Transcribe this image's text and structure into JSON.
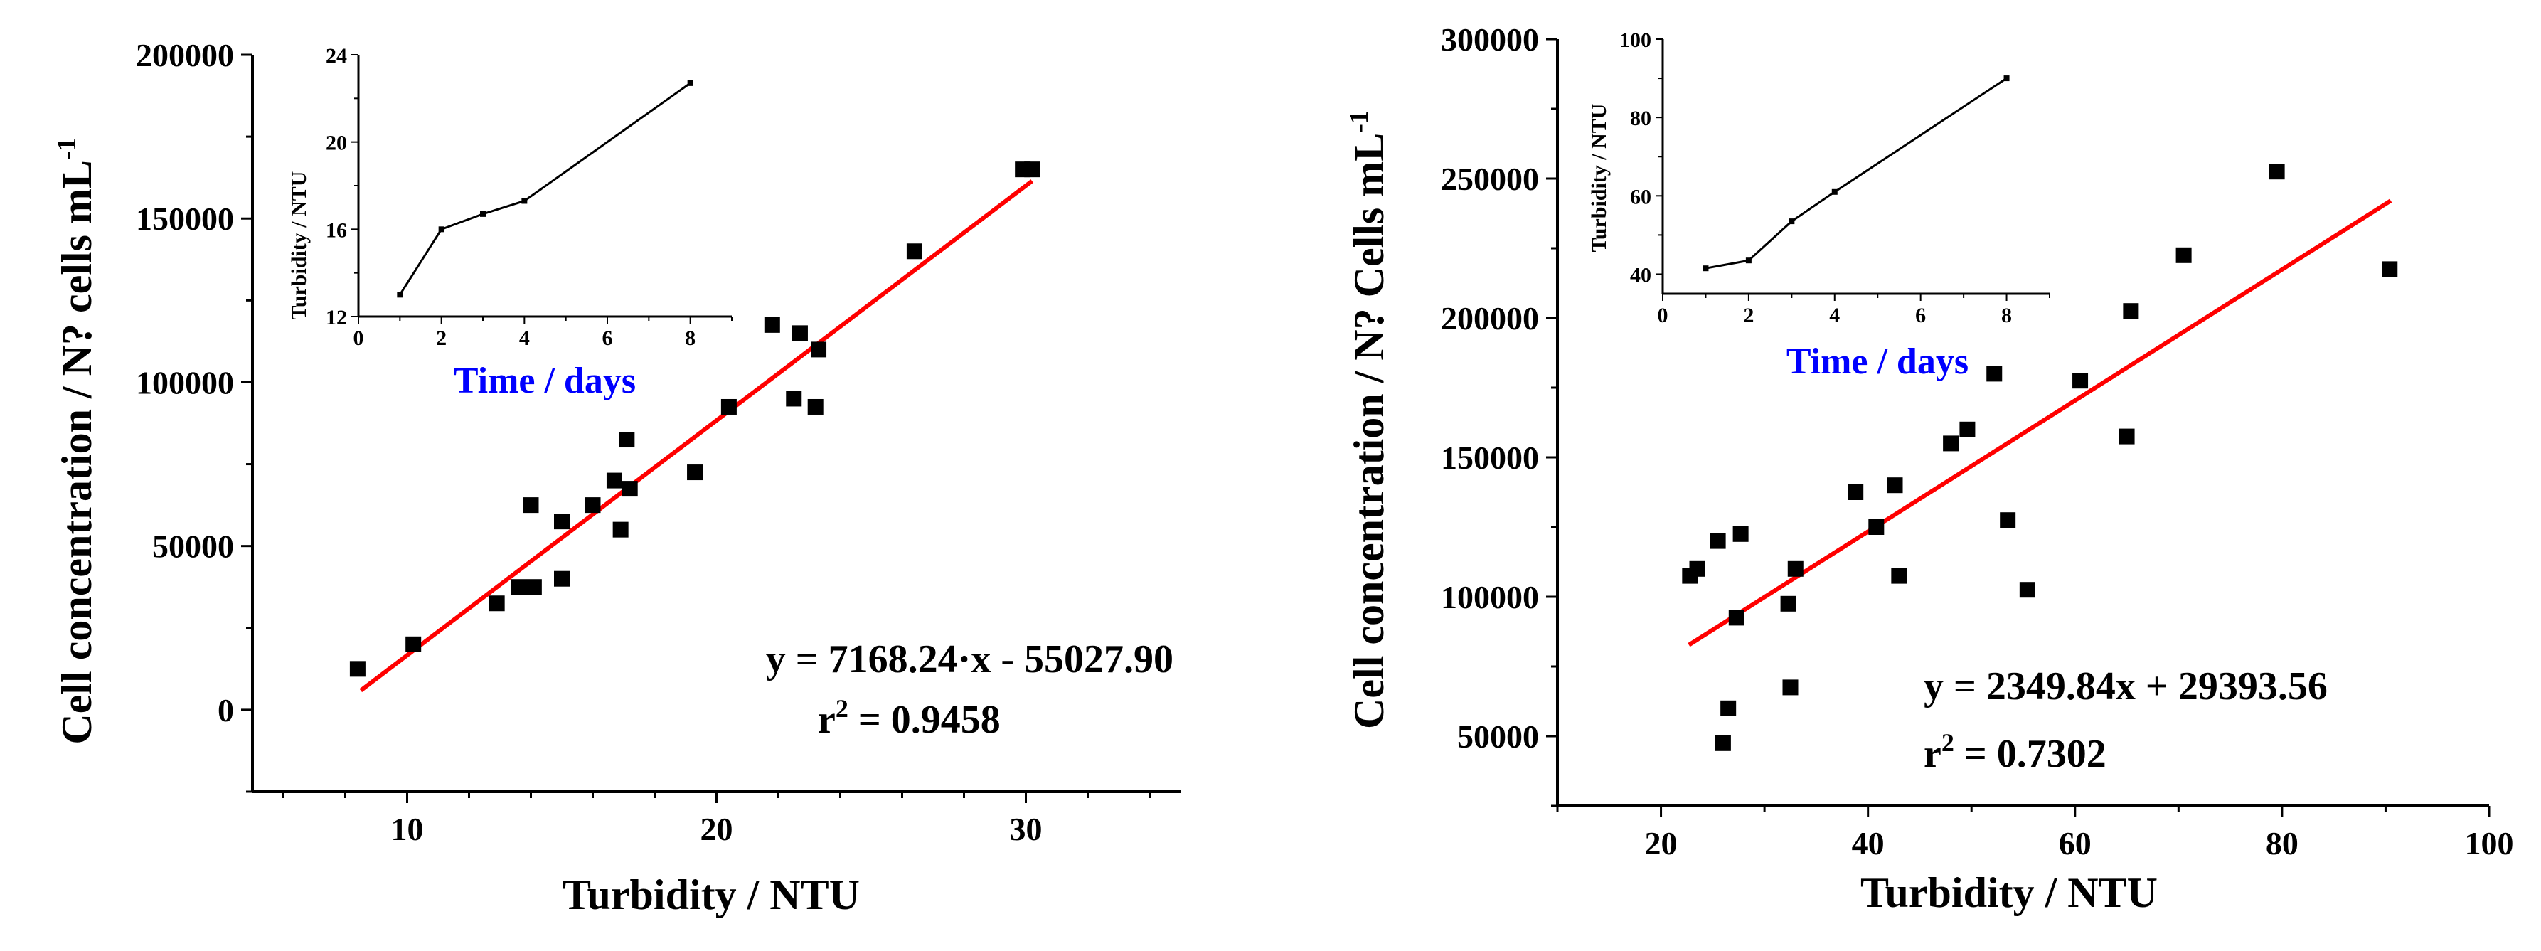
{
  "colors": {
    "fit": "#ff0000",
    "points": "#000000",
    "inset_label": "#0000ff",
    "axis": "#000000"
  },
  "chart_data": [
    {
      "type": "scatter",
      "panel": "left",
      "xlabel": "Turbidity / NTU",
      "ylabel": "Cell concentration / N? cells mL",
      "ylabel_sup": "-1",
      "xlim": [
        5,
        35
      ],
      "ylim": [
        -25000,
        200000
      ],
      "xticks": [
        10,
        20,
        30
      ],
      "yticks": [
        0,
        50000,
        100000,
        150000,
        200000
      ],
      "points": [
        [
          8.4,
          12500
        ],
        [
          10.2,
          20000
        ],
        [
          12.9,
          32500
        ],
        [
          13.6,
          37500
        ],
        [
          14.1,
          37500
        ],
        [
          14.0,
          62500
        ],
        [
          15.0,
          57500
        ],
        [
          15.0,
          40000
        ],
        [
          16.0,
          62500
        ],
        [
          16.7,
          70000
        ],
        [
          16.9,
          55000
        ],
        [
          17.1,
          82500
        ],
        [
          17.2,
          67500
        ],
        [
          19.3,
          72500
        ],
        [
          20.4,
          92500
        ],
        [
          21.8,
          117500
        ],
        [
          22.5,
          95000
        ],
        [
          22.7,
          115000
        ],
        [
          23.2,
          92500
        ],
        [
          23.3,
          110000
        ],
        [
          26.4,
          140000
        ],
        [
          29.9,
          165000
        ],
        [
          30.2,
          165000
        ]
      ],
      "fit": {
        "slope": 7168.24,
        "intercept": -55027.9,
        "x_range": [
          8.5,
          30.2
        ]
      },
      "equation": "y = 7168.24·x - 55027.90",
      "r2_prefix": "r",
      "r2_sup": "2",
      "r2_value": " = 0.9458",
      "inset": {
        "type": "line",
        "xlabel": "Time / days",
        "ylabel": "Turbidity / NTU",
        "xlim": [
          0,
          9
        ],
        "ylim": [
          12,
          24
        ],
        "xticks": [
          0,
          2,
          4,
          6,
          8
        ],
        "yticks": [
          12,
          16,
          20,
          24
        ],
        "x": [
          1,
          2,
          3,
          4,
          8
        ],
        "y": [
          13.0,
          16.0,
          16.7,
          17.3,
          22.7
        ]
      }
    },
    {
      "type": "scatter",
      "panel": "right",
      "xlabel": "Turbidity / NTU",
      "ylabel": "Cell concentration / N? Cells mL",
      "ylabel_sup": "-1",
      "xlim": [
        10,
        100
      ],
      "ylim": [
        25000,
        300000
      ],
      "xticks": [
        20,
        40,
        60,
        80,
        100
      ],
      "yticks": [
        50000,
        100000,
        150000,
        200000,
        250000,
        300000
      ],
      "points": [
        [
          22.8,
          107500
        ],
        [
          23.5,
          110000
        ],
        [
          25.5,
          120000
        ],
        [
          26.0,
          47500
        ],
        [
          26.5,
          60000
        ],
        [
          27.3,
          92500
        ],
        [
          27.7,
          122500
        ],
        [
          32.3,
          97500
        ],
        [
          32.5,
          67500
        ],
        [
          33.0,
          110000
        ],
        [
          38.8,
          137500
        ],
        [
          40.8,
          125000
        ],
        [
          42.6,
          140000
        ],
        [
          43.0,
          107500
        ],
        [
          48.0,
          155000
        ],
        [
          49.6,
          160000
        ],
        [
          52.2,
          180000
        ],
        [
          53.5,
          127500
        ],
        [
          55.4,
          102500
        ],
        [
          60.5,
          177500
        ],
        [
          65.0,
          157500
        ],
        [
          65.4,
          202500
        ],
        [
          70.5,
          222500
        ],
        [
          79.5,
          252500
        ],
        [
          90.4,
          217500
        ]
      ],
      "fit": {
        "slope": 2349.84,
        "intercept": 29393.56,
        "x_range": [
          22.7,
          90.5
        ]
      },
      "equation": "y = 2349.84x + 29393.56",
      "r2_prefix": "r",
      "r2_sup": "2",
      "r2_value": " = 0.7302",
      "inset": {
        "type": "line",
        "xlabel": "Time / days",
        "ylabel": "Turbidity / NTU",
        "xlim": [
          0,
          9
        ],
        "ylim": [
          35,
          100
        ],
        "xticks": [
          0,
          2,
          4,
          6,
          8
        ],
        "yticks": [
          40,
          60,
          80,
          100
        ],
        "x": [
          1,
          2,
          3,
          4,
          8
        ],
        "y": [
          41.5,
          43.5,
          53.5,
          61.0,
          90.0
        ]
      }
    }
  ]
}
